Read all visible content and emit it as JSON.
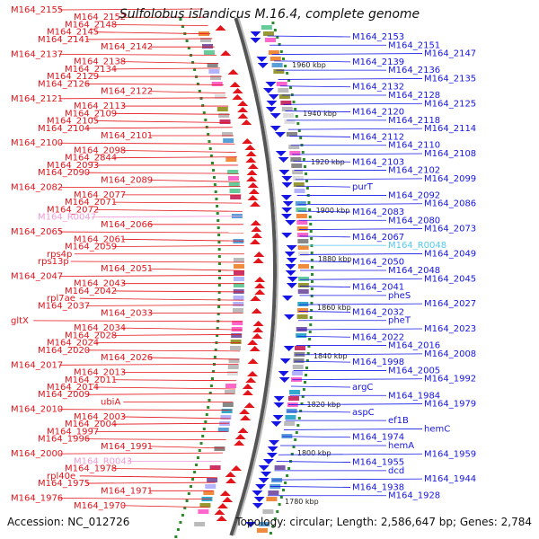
{
  "title": "Sulfolobus islandicus M.16.4, complete genome",
  "footer": {
    "accession": "Accession: NC_012726",
    "summary": "Topology: circular; Length: 2,586,647 bp; Genes: 2,784"
  },
  "colors": {
    "forward": "#e4141b",
    "reverse": "#1515e6",
    "rna_fwd": "#f29ad8",
    "rna_rev": "#55c8f0"
  },
  "ticks": [
    "1960 kbp",
    "1940 kbp",
    "1920 kbp",
    "1900 kbp",
    "1880 kbp",
    "1860 kbp",
    "1840 kbp",
    "1820 kbp",
    "1800 kbp",
    "1780 kbp"
  ],
  "left_labels": [
    "M164_2155",
    "M164_2152",
    "M164_2148",
    "M164_2145",
    "M164_2141",
    "M164_2142",
    "M164_2137",
    "M164_2138",
    "M164_2134",
    "M164_2129",
    "M164_2126",
    "M164_2122",
    "M164_2121",
    "M164_2113",
    "M164_2109",
    "M164_2105",
    "M164_2104",
    "M164_2101",
    "M164_2100",
    "M164_2098",
    "M164_2844",
    "M164_2093",
    "M164_2090",
    "M164_2089",
    "M164_2082",
    "M164_2077",
    "M164_2071",
    "M164_2072",
    "M164_R0047",
    "M164_2066",
    "M164_2065",
    "M164_2061",
    "M164_2059",
    "rps4p",
    "rps13p",
    "M164_2051",
    "M164_2047",
    "M164_2043",
    "M164_2042",
    "rpl7ae",
    "M164_2037",
    "M164_2033",
    "gltX",
    "M164_2034",
    "M164_2028",
    "M164_2024",
    "M164_2020",
    "M164_2026",
    "M164_2017",
    "M164_2013",
    "M164_2011",
    "M164_2014",
    "M164_2009",
    "ubiA",
    "M164_2010",
    "M164_2003",
    "M164_2004",
    "M164_1997",
    "M164_1996",
    "M164_1991",
    "M164_2000",
    "M164_R0043",
    "M164_1978",
    "rpl40e",
    "M164_1975",
    "M164_1971",
    "M164_1976",
    "M164_1970"
  ],
  "right_labels": [
    "M164_2153",
    "M164_2151",
    "M164_2147",
    "M164_2139",
    "M164_2136",
    "M164_2135",
    "M164_2132",
    "M164_2128",
    "M164_2125",
    "M164_2120",
    "M164_2118",
    "M164_2114",
    "M164_2112",
    "M164_2110",
    "M164_2108",
    "M164_2103",
    "M164_2102",
    "M164_2099",
    "purT",
    "M164_2092",
    "M164_2086",
    "M164_2083",
    "M164_2080",
    "M164_2073",
    "M164_2067",
    "M164_R0048",
    "M164_2049",
    "M164_2050",
    "M164_2048",
    "M164_2045",
    "M164_2041",
    "pheS",
    "M164_2027",
    "M164_2032",
    "pheT",
    "M164_2023",
    "M164_2022",
    "M164_2016",
    "M164_2008",
    "M164_1998",
    "M164_2005",
    "M164_1992",
    "argC",
    "M164_1984",
    "M164_1979",
    "aspC",
    "ef1B",
    "hemC",
    "M164_1974",
    "hemA",
    "M164_1959",
    "M164_1955",
    "dcd",
    "M164_1944",
    "M164_1938",
    "M164_1928"
  ]
}
